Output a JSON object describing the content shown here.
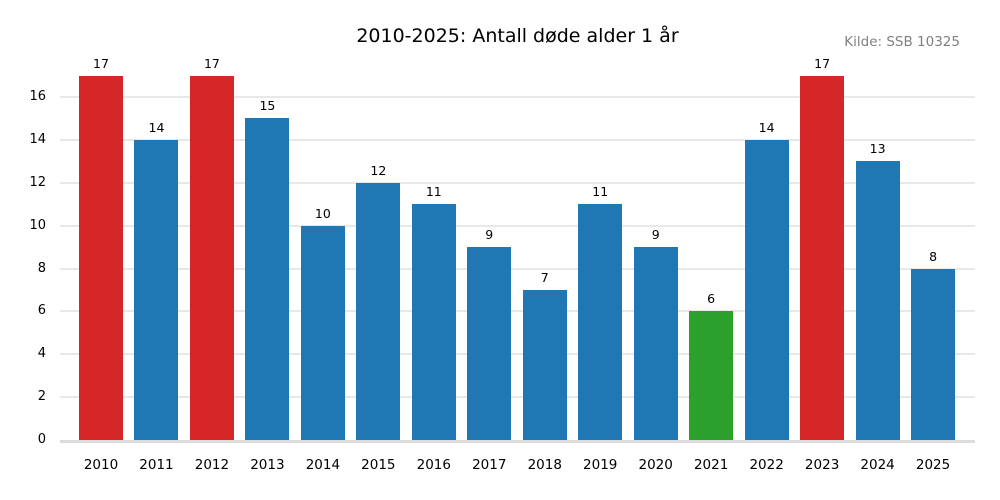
{
  "chart_data": {
    "type": "bar",
    "title": "2010-2025: Antall døde alder 1 år",
    "source": "Kilde: SSB 10325",
    "categories": [
      "2010",
      "2011",
      "2012",
      "2013",
      "2014",
      "2015",
      "2016",
      "2017",
      "2018",
      "2019",
      "2020",
      "2021",
      "2022",
      "2023",
      "2024",
      "2025"
    ],
    "values": [
      17,
      14,
      17,
      15,
      10,
      12,
      11,
      9,
      7,
      11,
      9,
      6,
      14,
      17,
      13,
      8
    ],
    "bar_colors": [
      "#d62728",
      "#1f77b4",
      "#d62728",
      "#1f77b4",
      "#1f77b4",
      "#1f77b4",
      "#1f77b4",
      "#1f77b4",
      "#1f77b4",
      "#1f77b4",
      "#1f77b4",
      "#2ca02c",
      "#1f77b4",
      "#d62728",
      "#1f77b4",
      "#1f77b4"
    ],
    "xlabel": "",
    "ylabel": "",
    "ylim": [
      0,
      17.85
    ],
    "yticks": [
      0,
      2,
      4,
      6,
      8,
      10,
      12,
      14,
      16
    ],
    "grid": "horizontal-light",
    "legend": "none",
    "colors": {
      "highlight_max": "#d62728",
      "default_bar": "#1f77b4",
      "highlight_min": "#2ca02c",
      "gridline": "#e8e8e8",
      "axis_line": "#dcdcdc",
      "source_text": "#808080"
    }
  }
}
